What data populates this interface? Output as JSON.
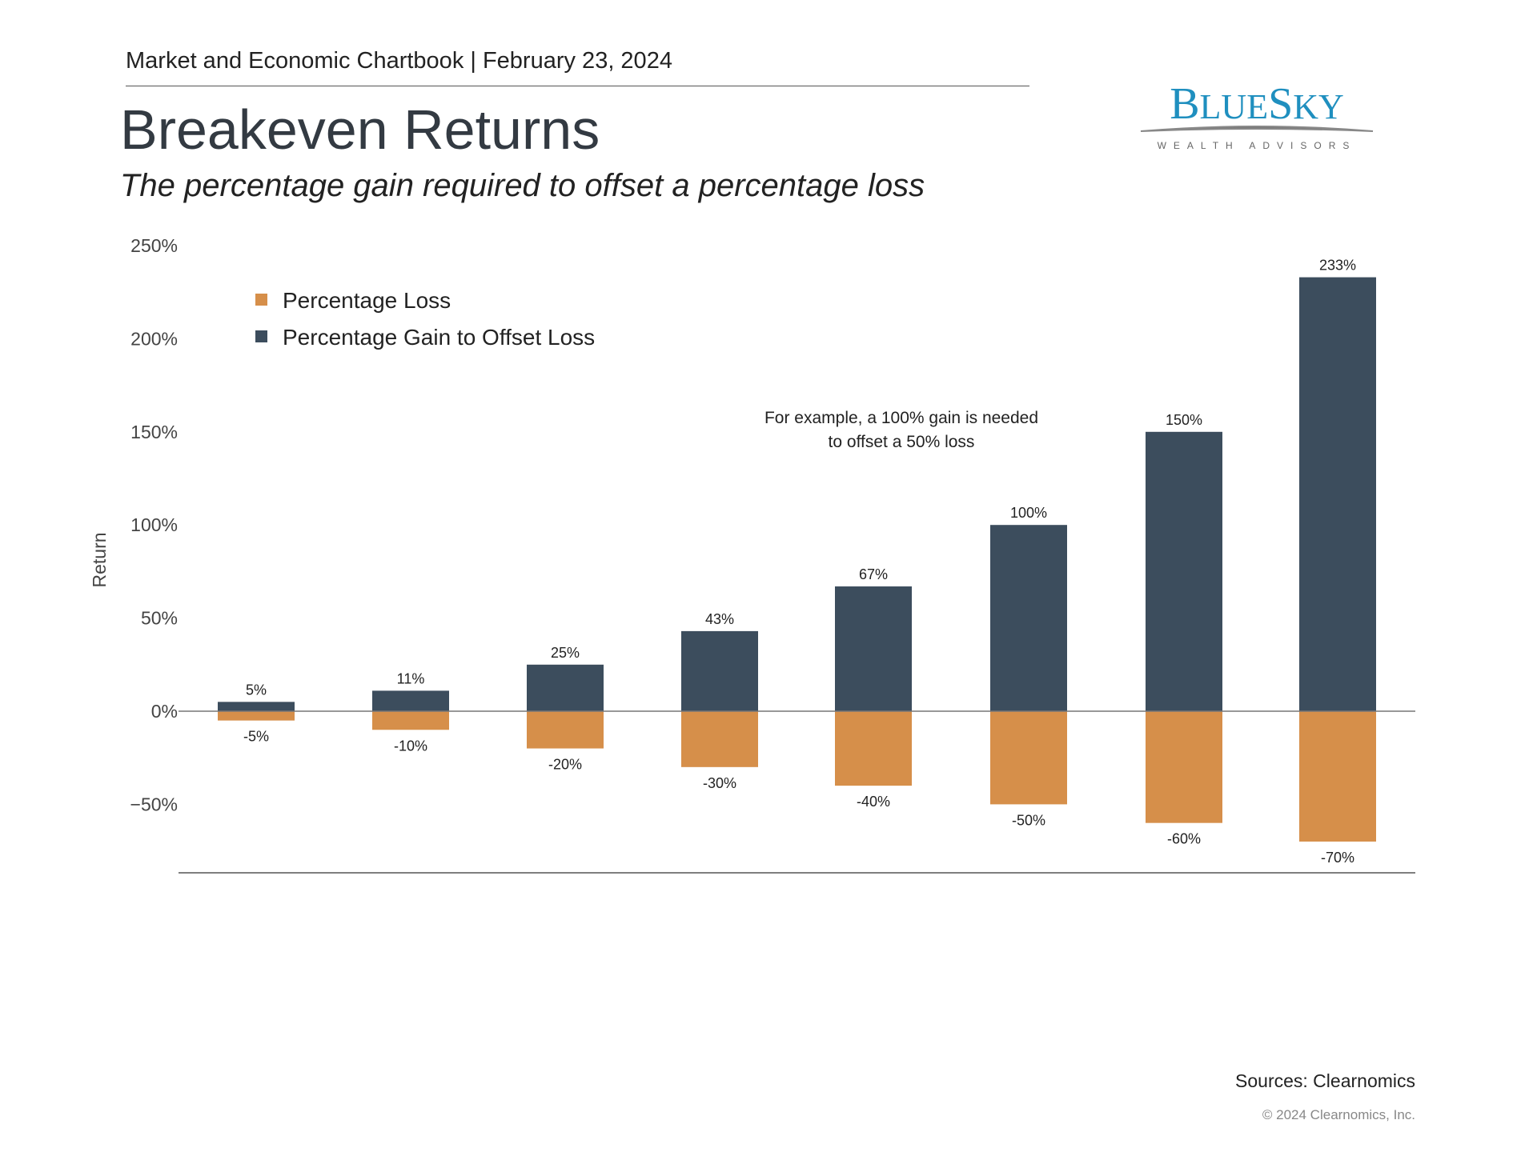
{
  "header": {
    "text": "Market and Economic Chartbook | February 23, 2024"
  },
  "title": "Breakeven Returns",
  "subtitle": "The percentage gain required to offset a percentage loss",
  "logo": {
    "name": "BLUESKY",
    "tagline": "WEALTH ADVISORS",
    "color": "#1f8fbf"
  },
  "footer": {
    "sources": "Sources: Clearnomics",
    "copyright": "© 2024 Clearnomics, Inc."
  },
  "chart_data": {
    "type": "bar",
    "ylabel": "Return",
    "ylim": [
      -70,
      250
    ],
    "yticks": [
      -50,
      0,
      50,
      100,
      150,
      200,
      250
    ],
    "ytick_labels": [
      "−50%",
      "0%",
      "50%",
      "100%",
      "150%",
      "200%",
      "250%"
    ],
    "grid": false,
    "legend_position": "top-left",
    "series": [
      {
        "name": "Percentage Loss",
        "color": "#d68f4a",
        "values": [
          -5,
          -10,
          -20,
          -30,
          -40,
          -50,
          -60,
          -70
        ],
        "labels": [
          "-5%",
          "-10%",
          "-20%",
          "-30%",
          "-40%",
          "-50%",
          "-60%",
          "-70%"
        ]
      },
      {
        "name": "Percentage Gain to Offset Loss",
        "color": "#3c4d5d",
        "values": [
          5,
          11,
          25,
          43,
          67,
          100,
          150,
          233
        ],
        "labels": [
          "5%",
          "11%",
          "25%",
          "43%",
          "67%",
          "100%",
          "150%",
          "233%"
        ]
      }
    ],
    "annotation": [
      "For example, a 100% gain is needed",
      "to offset a 50% loss"
    ]
  }
}
